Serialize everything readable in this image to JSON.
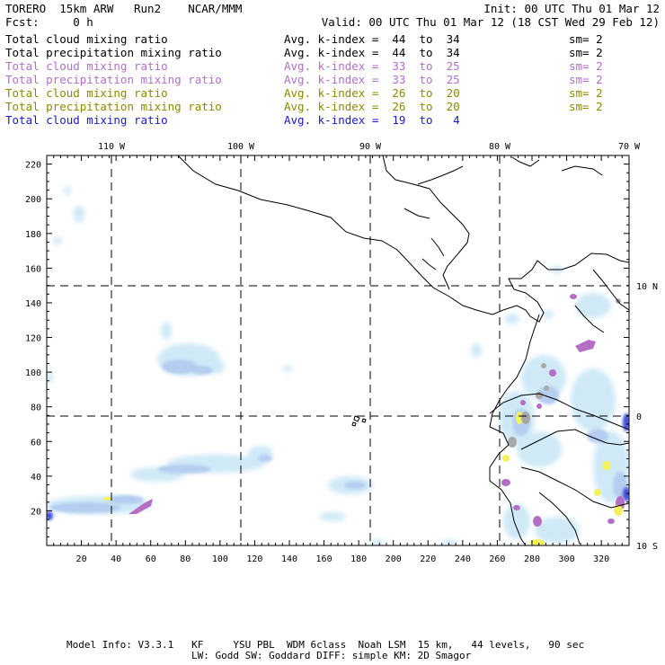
{
  "header": {
    "left_line1": "TORERO  15km ARW   Run2    NCAR/MMM",
    "right_line1": "Init: 00 UTC Thu 01 Mar 12",
    "left_line2": "Fcst:     0 h",
    "right_line2": "Valid: 00 UTC Thu 01 Mar 12 (18 CST Wed 29 Feb 12)"
  },
  "legend": [
    {
      "field": "Total cloud mixing ratio",
      "index": "Avg. k-index =  44  to  34",
      "sm": "sm= 2",
      "color": "#000000"
    },
    {
      "field": "Total precipitation mixing ratio",
      "index": "Avg. k-index =  44  to  34",
      "sm": "sm= 2",
      "color": "#000000"
    },
    {
      "field": "Total cloud mixing ratio",
      "index": "Avg. k-index =  33  to  25",
      "sm": "sm= 2",
      "color": "#b070c8"
    },
    {
      "field": "Total precipitation mixing ratio",
      "index": "Avg. k-index =  33  to  25",
      "sm": "sm= 2",
      "color": "#b070c8"
    },
    {
      "field": "Total cloud mixing ratio",
      "index": "Avg. k-index =  26  to  20",
      "sm": "sm= 2",
      "color": "#8a8a00"
    },
    {
      "field": "Total precipitation mixing ratio",
      "index": "Avg. k-index =  26  to  20",
      "sm": "sm= 2",
      "color": "#8a8a00"
    },
    {
      "field": "Total cloud mixing ratio",
      "index": "Avg. k-index =  19  to   4",
      "sm": "",
      "color": "#1a1acc"
    }
  ],
  "map": {
    "top_lon_labels": [
      "110 W",
      "100 W",
      "90 W",
      "80 W",
      "70 W"
    ],
    "right_lat_labels": [
      "10 N",
      "0",
      "10 S"
    ],
    "x_ticks": [
      "20",
      "40",
      "60",
      "80",
      "100",
      "120",
      "140",
      "160",
      "180",
      "200",
      "220",
      "240",
      "260",
      "280",
      "300",
      "320"
    ],
    "y_ticks": [
      "20",
      "40",
      "60",
      "80",
      "100",
      "120",
      "140",
      "160",
      "180",
      "200",
      "220"
    ]
  },
  "footer": {
    "line1": "Model Info: V3.3.1   KF     YSU PBL  WDM 6class  Noah LSM  15 km,   44 levels,   90 sec",
    "line2": "LW: Godd SW: Goddard DIFF: simple KM: 2D Smagor"
  },
  "colors": {
    "cloud_light": "#cfe9f7",
    "cloud_mid": "#b4cdf0",
    "cloud_blue": "#3f4ed8",
    "purple": "#b46fc4",
    "yellow": "#f4f25c",
    "gray": "#a8a8a8"
  }
}
